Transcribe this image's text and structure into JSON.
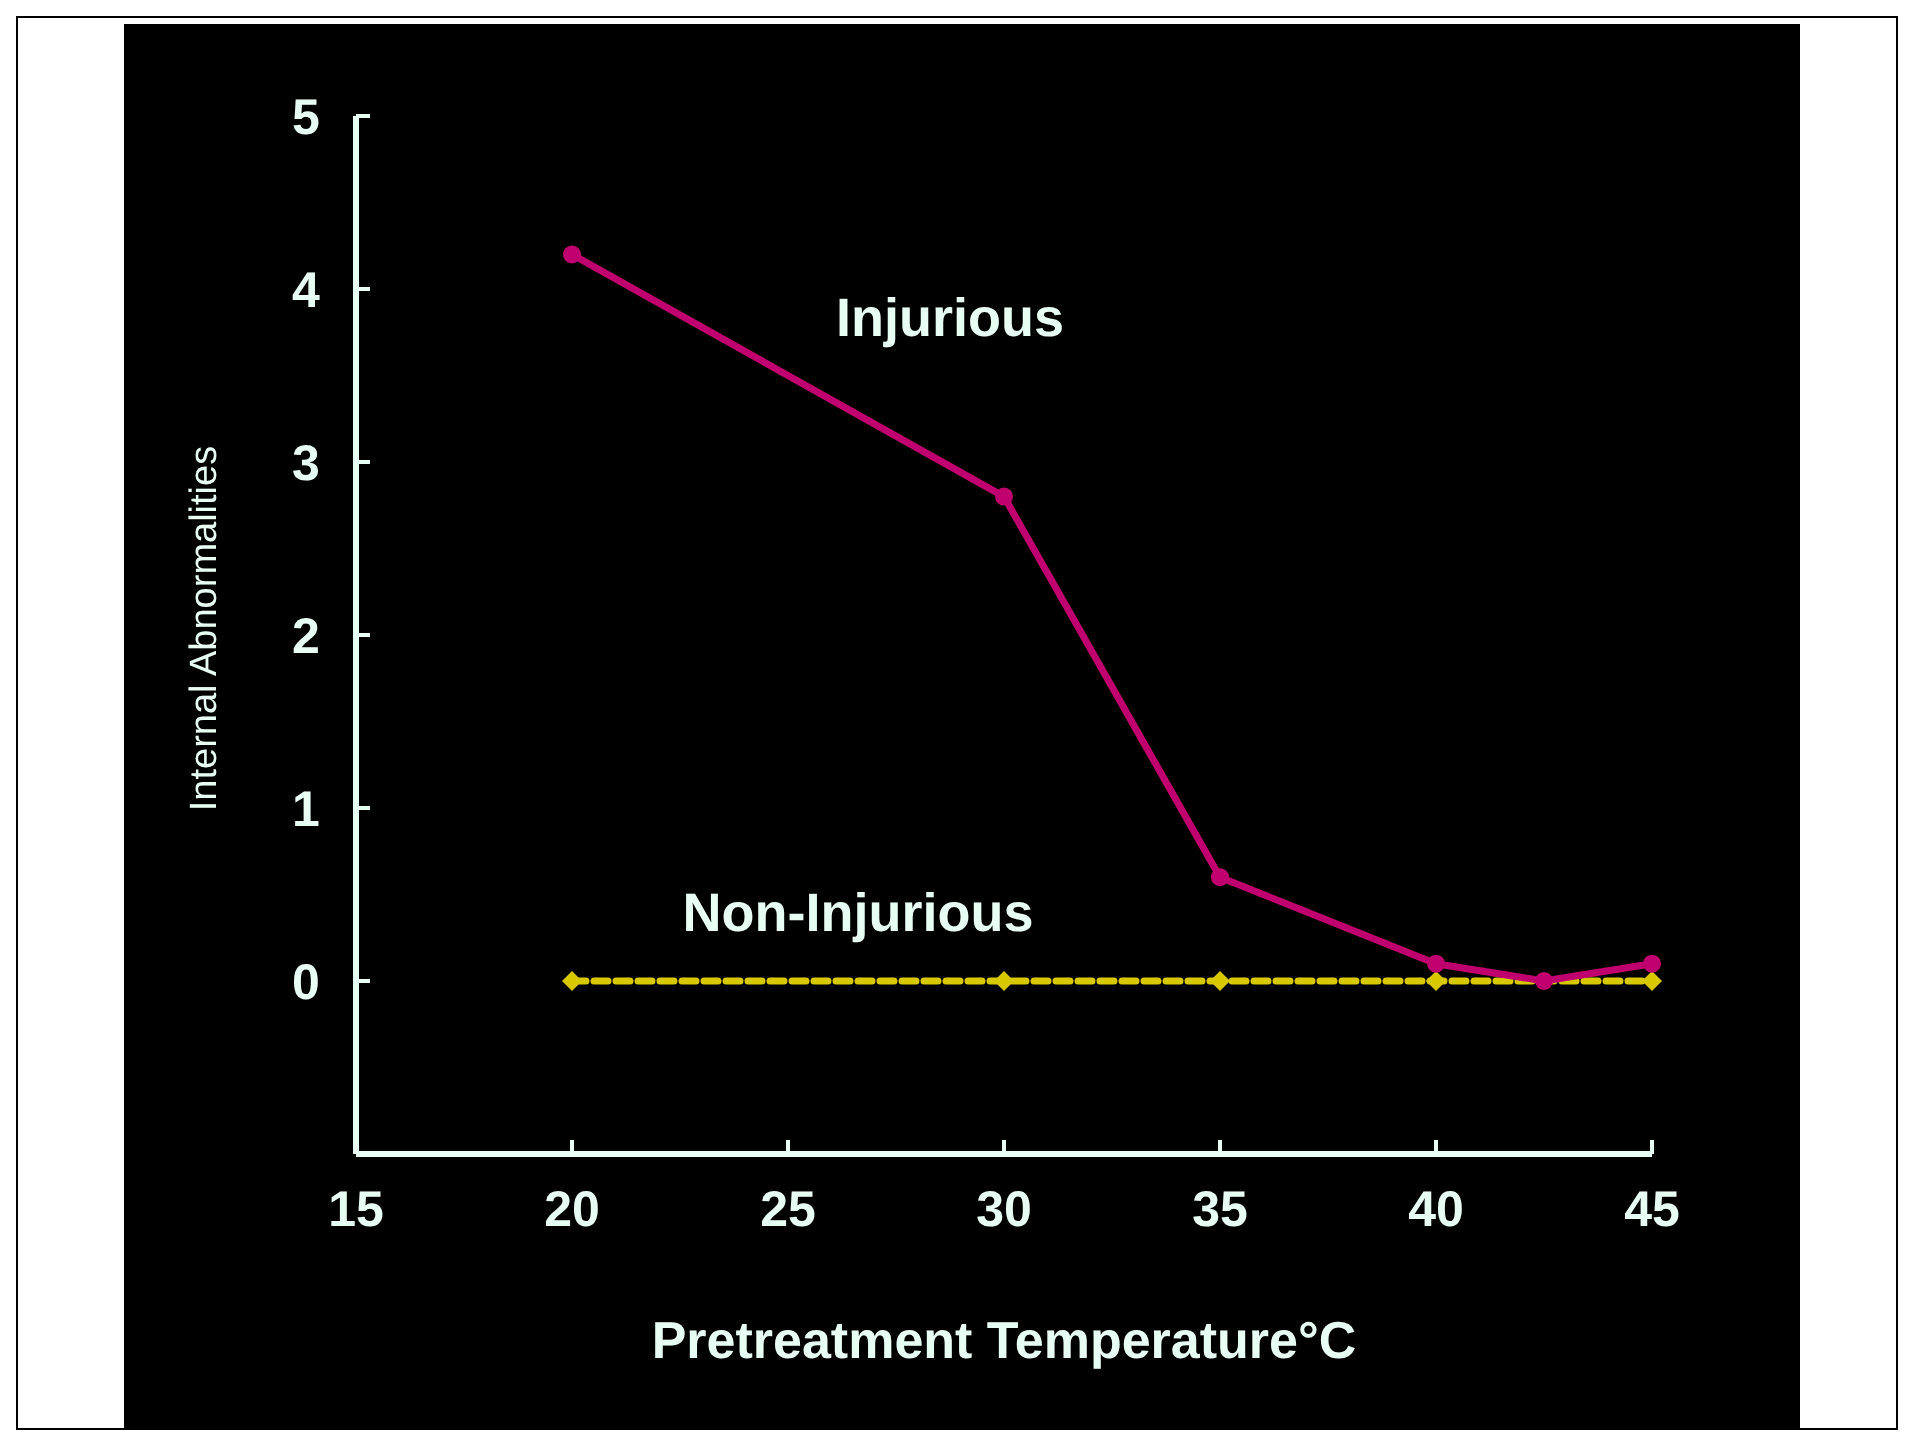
{
  "chart_data": {
    "type": "line",
    "xlabel": "Pretreatment Temperature°C",
    "ylabel": "Internal Abnormalities",
    "xlim": [
      15,
      45
    ],
    "xticks": [
      15,
      20,
      25,
      30,
      35,
      40,
      45
    ],
    "ylim": [
      -1,
      5
    ],
    "yticks": [
      0,
      1,
      2,
      3,
      4,
      5
    ],
    "grid": false,
    "series": [
      {
        "name": "Injurious",
        "color": "#c0006e",
        "x": [
          20,
          30,
          35,
          40,
          42.5,
          45
        ],
        "values": [
          4.2,
          2.8,
          0.6,
          0.1,
          0,
          0.1
        ],
        "marker": "circle",
        "line_style": "solid"
      },
      {
        "name": "Non-Injurious",
        "color": "#d8c800",
        "x": [
          20,
          30,
          35,
          40,
          45
        ],
        "values": [
          0,
          0,
          0,
          0,
          0
        ],
        "marker": "diamond",
        "line_style": "dashed"
      }
    ]
  }
}
